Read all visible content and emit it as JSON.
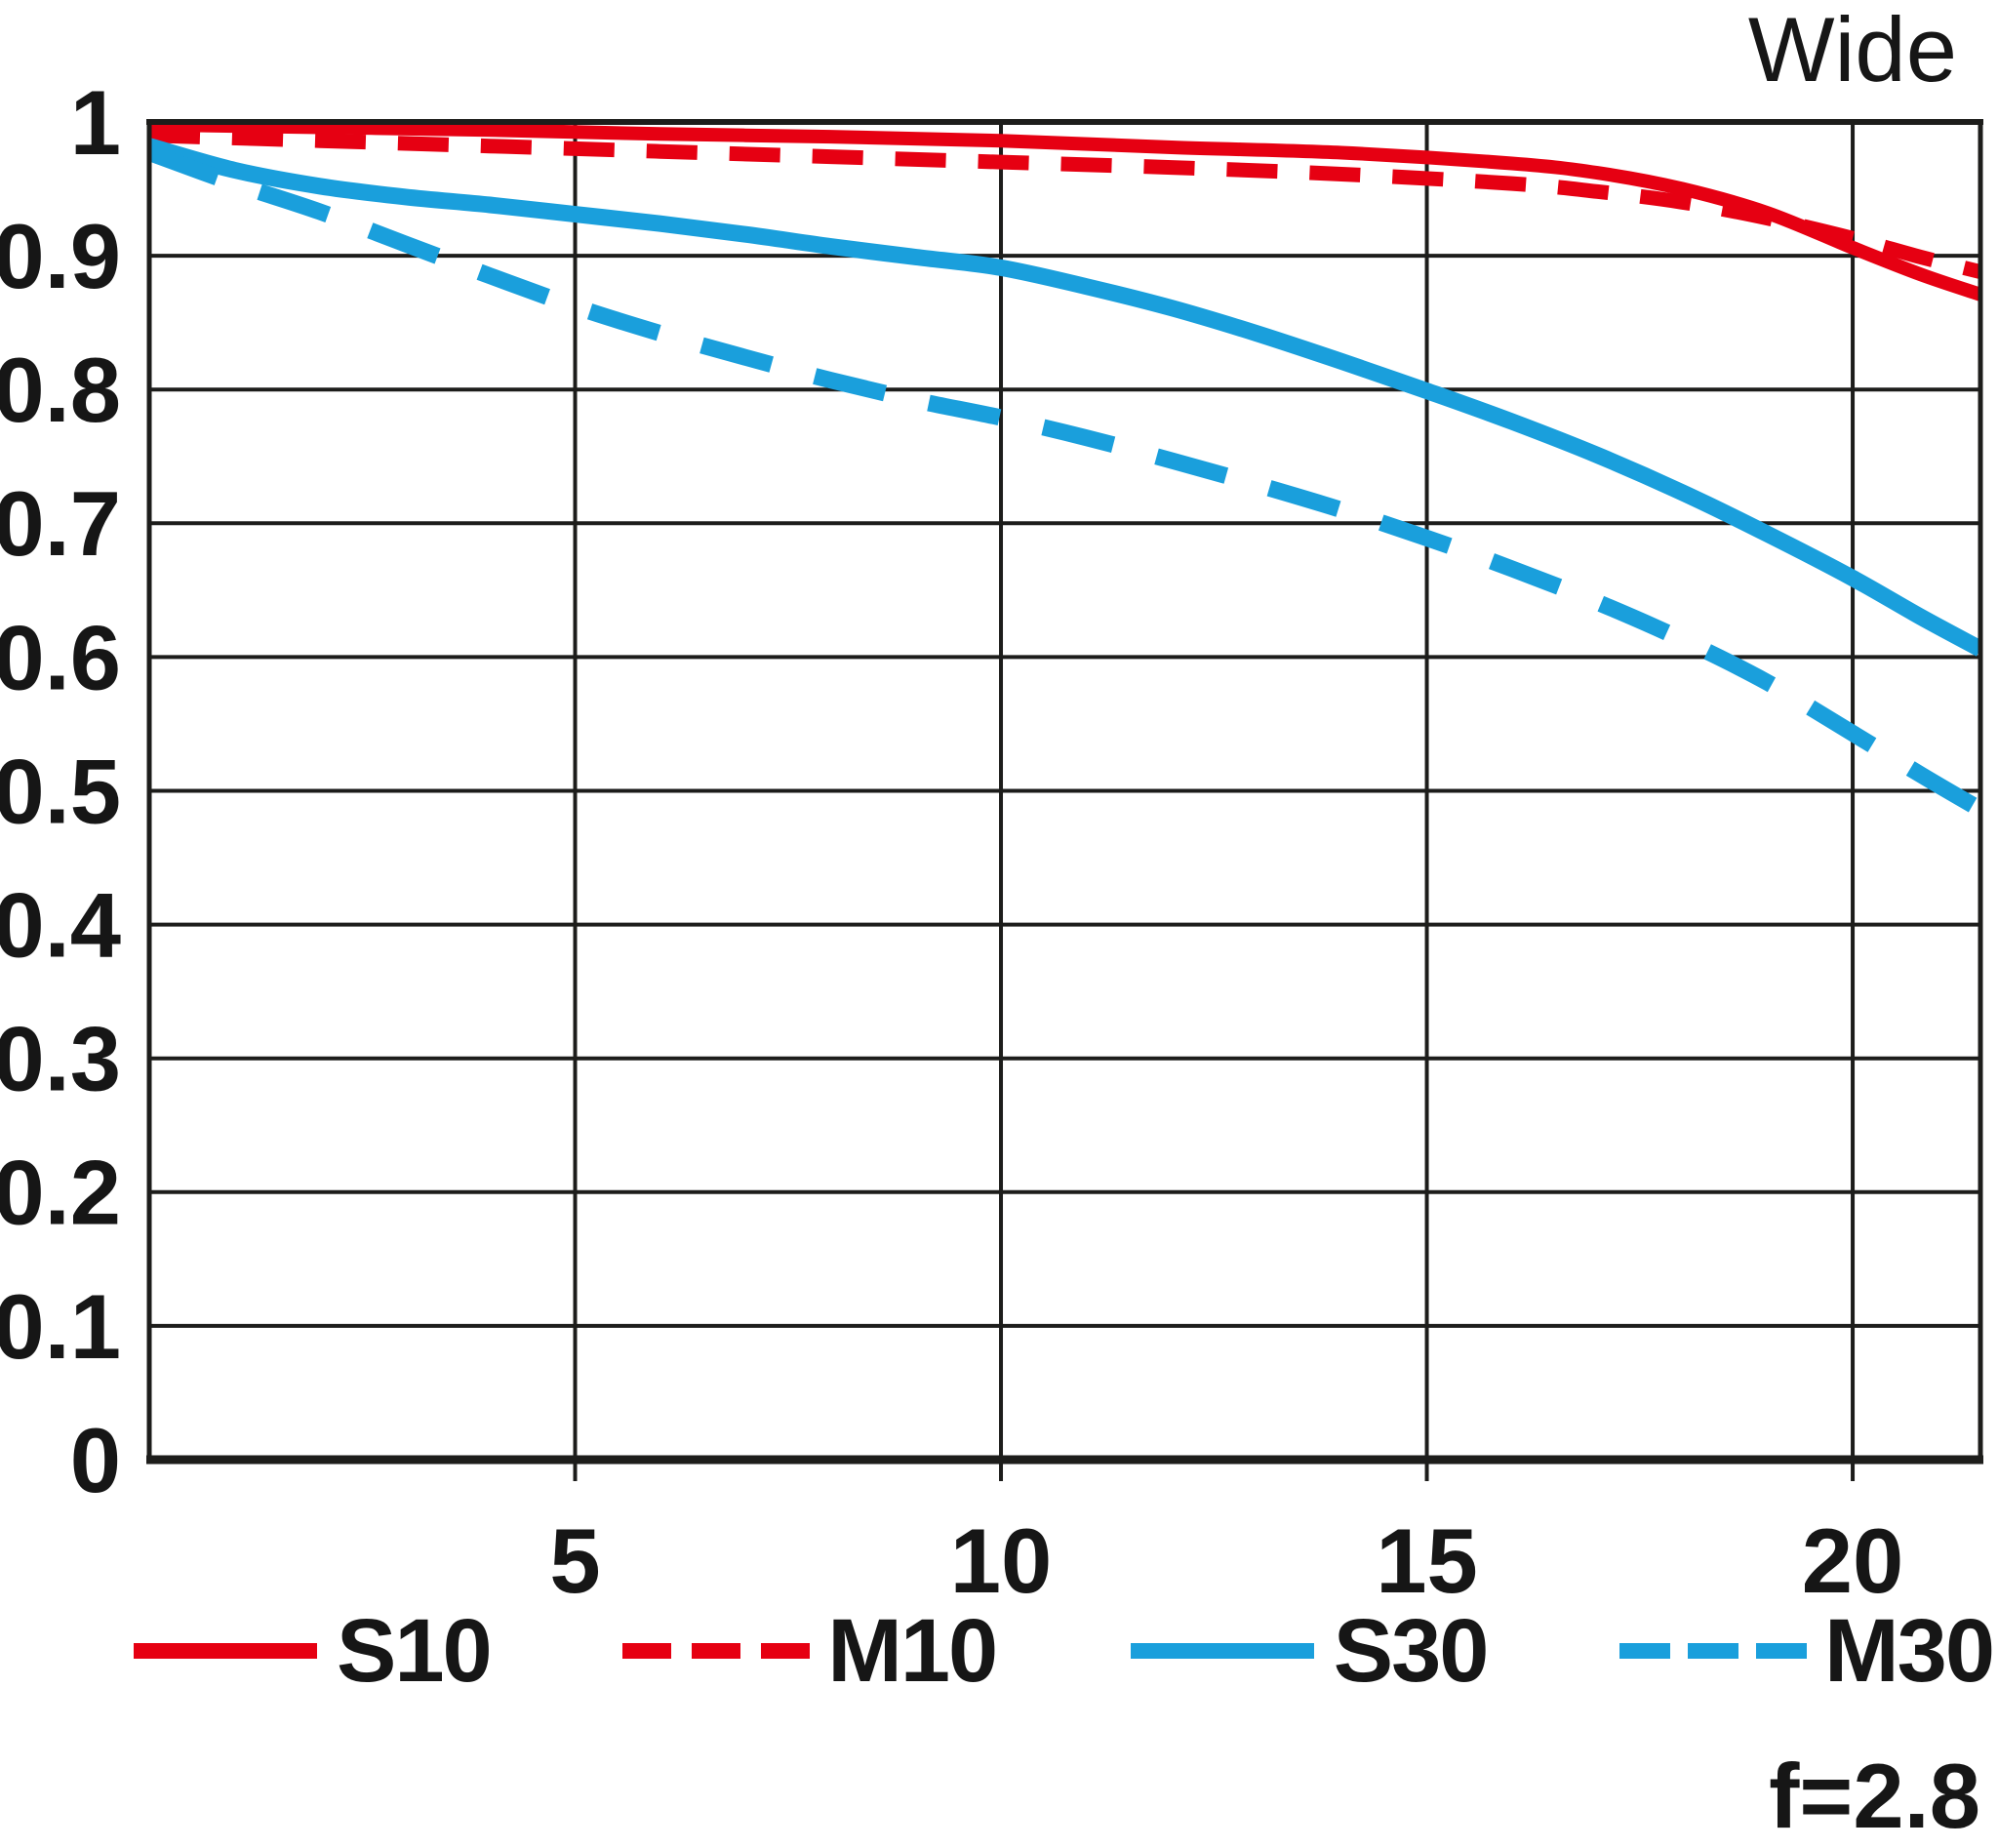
{
  "title": "Wide",
  "annotation": "f=2.8",
  "colors": {
    "sagittal_series": "#e60012",
    "meridional_series": "#1a9fdc",
    "axis_and_grid": "#1d1d1b",
    "background": "#ffffff",
    "text": "#161616"
  },
  "chart_data": {
    "type": "line",
    "title": "Wide",
    "subtitle": "",
    "xlabel": "",
    "ylabel": "",
    "annotation": "f=2.8",
    "xlim": [
      0,
      21.5
    ],
    "ylim": [
      0,
      1
    ],
    "xticks": [
      5,
      10,
      15,
      20
    ],
    "yticks": [
      1,
      0.9,
      0.8,
      0.7,
      0.6,
      0.5,
      0.4,
      0.3,
      0.2,
      0.1,
      0
    ],
    "ytick_labels": [
      "1",
      "0.9",
      "0.8",
      "0.7",
      "0.6",
      "0.5",
      "0.4",
      "0.3",
      "0.2",
      "0.1",
      "0"
    ],
    "grid": true,
    "legend_position": "bottom",
    "series": [
      {
        "name": "S10",
        "color": "#e60012",
        "style": "solid",
        "points": [
          [
            0,
            0.998
          ],
          [
            2,
            0.996
          ],
          [
            4,
            0.994
          ],
          [
            6,
            0.991
          ],
          [
            8,
            0.989
          ],
          [
            10,
            0.986
          ],
          [
            12,
            0.981
          ],
          [
            14,
            0.977
          ],
          [
            16,
            0.969
          ],
          [
            17,
            0.962
          ],
          [
            18,
            0.95
          ],
          [
            19,
            0.932
          ],
          [
            20,
            0.906
          ],
          [
            20.8,
            0.886
          ],
          [
            21.5,
            0.871
          ]
        ]
      },
      {
        "name": "M10",
        "color": "#e60012",
        "style": "dashed",
        "points": [
          [
            0,
            0.99
          ],
          [
            2,
            0.986
          ],
          [
            4,
            0.982
          ],
          [
            6,
            0.978
          ],
          [
            8,
            0.974
          ],
          [
            10,
            0.97
          ],
          [
            12,
            0.966
          ],
          [
            14,
            0.961
          ],
          [
            16,
            0.954
          ],
          [
            17,
            0.948
          ],
          [
            18,
            0.94
          ],
          [
            19,
            0.928
          ],
          [
            20,
            0.913
          ],
          [
            20.8,
            0.899
          ],
          [
            21.5,
            0.888
          ]
        ]
      },
      {
        "name": "S30",
        "color": "#1a9fdc",
        "style": "solid",
        "points": [
          [
            0,
            0.982
          ],
          [
            1,
            0.964
          ],
          [
            2,
            0.952
          ],
          [
            3,
            0.944
          ],
          [
            4,
            0.938
          ],
          [
            5,
            0.931
          ],
          [
            6,
            0.924
          ],
          [
            7,
            0.916
          ],
          [
            8,
            0.907
          ],
          [
            9,
            0.899
          ],
          [
            10,
            0.891
          ],
          [
            11,
            0.877
          ],
          [
            12,
            0.861
          ],
          [
            13,
            0.842
          ],
          [
            14,
            0.821
          ],
          [
            15,
            0.799
          ],
          [
            16,
            0.776
          ],
          [
            17,
            0.751
          ],
          [
            18,
            0.723
          ],
          [
            19,
            0.692
          ],
          [
            20,
            0.659
          ],
          [
            20.8,
            0.63
          ],
          [
            21.5,
            0.606
          ]
        ]
      },
      {
        "name": "M30",
        "color": "#1a9fdc",
        "style": "dashed",
        "points": [
          [
            0,
            0.977
          ],
          [
            1,
            0.954
          ],
          [
            2,
            0.933
          ],
          [
            3,
            0.909
          ],
          [
            4,
            0.885
          ],
          [
            5,
            0.862
          ],
          [
            6,
            0.842
          ],
          [
            7,
            0.824
          ],
          [
            8,
            0.807
          ],
          [
            9,
            0.792
          ],
          [
            10,
            0.779
          ],
          [
            11,
            0.764
          ],
          [
            12,
            0.747
          ],
          [
            13,
            0.729
          ],
          [
            14,
            0.71
          ],
          [
            15,
            0.689
          ],
          [
            16,
            0.666
          ],
          [
            17,
            0.641
          ],
          [
            18,
            0.613
          ],
          [
            19,
            0.581
          ],
          [
            20,
            0.543
          ],
          [
            20.8,
            0.512
          ],
          [
            21.5,
            0.486
          ]
        ]
      }
    ]
  }
}
